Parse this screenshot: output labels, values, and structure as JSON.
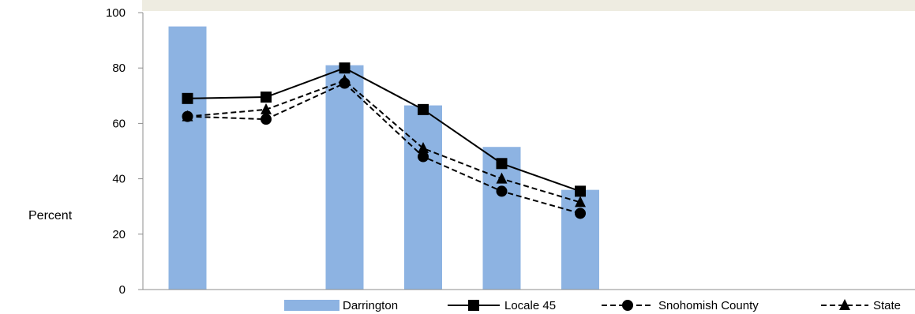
{
  "chart_data": {
    "type": "bar",
    "title": "",
    "ylabel": "Percent",
    "xlabel": "",
    "ylim": [
      0,
      100
    ],
    "yticks": [
      0,
      20,
      40,
      60,
      80,
      100
    ],
    "grid": false,
    "legend_position": "bottom",
    "categories": [
      "",
      "",
      "",
      "",
      "",
      ""
    ],
    "x_positions": [
      1,
      2,
      3,
      4,
      5,
      6
    ],
    "series": [
      {
        "name": "Darrington",
        "kind": "bar",
        "color": "#8db3e2",
        "values": [
          95,
          null,
          81,
          66.5,
          51.5,
          36
        ]
      },
      {
        "name": "Locale 45",
        "kind": "line",
        "marker": "square",
        "dash": "solid",
        "color": "#000000",
        "values": [
          69,
          69.5,
          80,
          65,
          45.5,
          35.5
        ]
      },
      {
        "name": "Snohomish County",
        "kind": "line",
        "marker": "circle",
        "dash": "dashed",
        "color": "#000000",
        "values": [
          62.5,
          61.5,
          74.5,
          48,
          35.5,
          27.5
        ]
      },
      {
        "name": "State",
        "kind": "line",
        "marker": "triangle",
        "dash": "dashed",
        "color": "#000000",
        "values": [
          62.5,
          65,
          75.5,
          51,
          40,
          31.5
        ]
      }
    ]
  }
}
